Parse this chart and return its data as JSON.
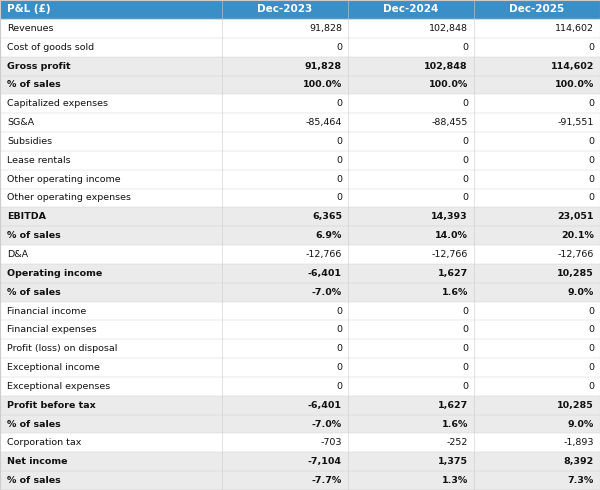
{
  "header_bg": "#3A8FC7",
  "header_text_color": "#FFFFFF",
  "title_col": "P&L (£)",
  "columns": [
    "Dec-2023",
    "Dec-2024",
    "Dec-2025"
  ],
  "rows": [
    {
      "label": "Revenues",
      "bold": false,
      "shaded": false,
      "values": [
        "91,828",
        "102,848",
        "114,602"
      ]
    },
    {
      "label": "Cost of goods sold",
      "bold": false,
      "shaded": false,
      "values": [
        "0",
        "0",
        "0"
      ]
    },
    {
      "label": "Gross profit",
      "bold": true,
      "shaded": true,
      "values": [
        "91,828",
        "102,848",
        "114,602"
      ]
    },
    {
      "label": "% of sales",
      "bold": true,
      "shaded": true,
      "values": [
        "100.0%",
        "100.0%",
        "100.0%"
      ]
    },
    {
      "label": "Capitalized expenses",
      "bold": false,
      "shaded": false,
      "values": [
        "0",
        "0",
        "0"
      ]
    },
    {
      "label": "SG&A",
      "bold": false,
      "shaded": false,
      "values": [
        "-85,464",
        "-88,455",
        "-91,551"
      ]
    },
    {
      "label": "Subsidies",
      "bold": false,
      "shaded": false,
      "values": [
        "0",
        "0",
        "0"
      ]
    },
    {
      "label": "Lease rentals",
      "bold": false,
      "shaded": false,
      "values": [
        "0",
        "0",
        "0"
      ]
    },
    {
      "label": "Other operating income",
      "bold": false,
      "shaded": false,
      "values": [
        "0",
        "0",
        "0"
      ]
    },
    {
      "label": "Other operating expenses",
      "bold": false,
      "shaded": false,
      "values": [
        "0",
        "0",
        "0"
      ]
    },
    {
      "label": "EBITDA",
      "bold": true,
      "shaded": true,
      "values": [
        "6,365",
        "14,393",
        "23,051"
      ]
    },
    {
      "label": "% of sales",
      "bold": true,
      "shaded": true,
      "values": [
        "6.9%",
        "14.0%",
        "20.1%"
      ]
    },
    {
      "label": "D&A",
      "bold": false,
      "shaded": false,
      "values": [
        "-12,766",
        "-12,766",
        "-12,766"
      ]
    },
    {
      "label": "Operating income",
      "bold": true,
      "shaded": true,
      "values": [
        "-6,401",
        "1,627",
        "10,285"
      ]
    },
    {
      "label": "% of sales",
      "bold": true,
      "shaded": true,
      "values": [
        "-7.0%",
        "1.6%",
        "9.0%"
      ]
    },
    {
      "label": "Financial income",
      "bold": false,
      "shaded": false,
      "values": [
        "0",
        "0",
        "0"
      ]
    },
    {
      "label": "Financial expenses",
      "bold": false,
      "shaded": false,
      "values": [
        "0",
        "0",
        "0"
      ]
    },
    {
      "label": "Profit (loss) on disposal",
      "bold": false,
      "shaded": false,
      "values": [
        "0",
        "0",
        "0"
      ]
    },
    {
      "label": "Exceptional income",
      "bold": false,
      "shaded": false,
      "values": [
        "0",
        "0",
        "0"
      ]
    },
    {
      "label": "Exceptional expenses",
      "bold": false,
      "shaded": false,
      "values": [
        "0",
        "0",
        "0"
      ]
    },
    {
      "label": "Profit before tax",
      "bold": true,
      "shaded": true,
      "values": [
        "-6,401",
        "1,627",
        "10,285"
      ]
    },
    {
      "label": "% of sales",
      "bold": true,
      "shaded": true,
      "values": [
        "-7.0%",
        "1.6%",
        "9.0%"
      ]
    },
    {
      "label": "Corporation tax",
      "bold": false,
      "shaded": false,
      "values": [
        "-703",
        "-252",
        "-1,893"
      ]
    },
    {
      "label": "Net income",
      "bold": true,
      "shaded": true,
      "values": [
        "-7,104",
        "1,375",
        "8,392"
      ]
    },
    {
      "label": "% of sales",
      "bold": true,
      "shaded": true,
      "values": [
        "-7.7%",
        "1.3%",
        "7.3%"
      ]
    }
  ],
  "shaded_bg": "#EBEBEB",
  "white_bg": "#FFFFFF",
  "border_color": "#CCCCCC",
  "text_color": "#111111",
  "font_size": 6.8,
  "header_font_size": 7.5
}
